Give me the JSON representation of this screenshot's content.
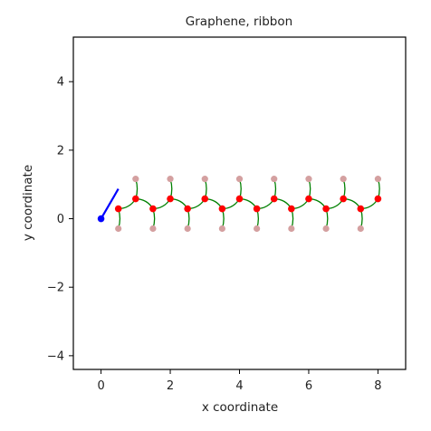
{
  "chart_data": {
    "type": "scatter",
    "title": "Graphene, ribbon",
    "xlabel": "x coordinate",
    "ylabel": "y coordinate",
    "xlim": [
      -0.8,
      8.8
    ],
    "ylim": [
      -4.4,
      5.3
    ],
    "xticks": [
      0,
      2,
      4,
      6,
      8
    ],
    "yticks": [
      -4,
      -2,
      0,
      2,
      4
    ],
    "xtick_labels": [
      "0",
      "2",
      "4",
      "6",
      "8"
    ],
    "ytick_labels": [
      "−4",
      "−2",
      "0",
      "2",
      "4"
    ],
    "grid": false,
    "colors": {
      "main_atoms": "#ff0000",
      "edge_atoms": "#d4a0a0",
      "bonds": "#008000",
      "origin_point": "#0000ff",
      "origin_vector": "#0000ff",
      "frame": "#000000"
    },
    "series": [
      {
        "points": [
          [
            0.5,
            0.29
          ],
          [
            1,
            0.58
          ],
          [
            1.5,
            0.29
          ],
          [
            2,
            0.58
          ],
          [
            2.5,
            0.29
          ],
          [
            3,
            0.58
          ],
          [
            3.5,
            0.29
          ],
          [
            4,
            0.58
          ],
          [
            4.5,
            0.29
          ],
          [
            5,
            0.58
          ],
          [
            5.5,
            0.29
          ],
          [
            6,
            0.58
          ],
          [
            6.5,
            0.29
          ],
          [
            7,
            0.58
          ],
          [
            7.5,
            0.29
          ],
          [
            8,
            0.58
          ]
        ]
      },
      {
        "points": [
          [
            0.5,
            -0.29
          ],
          [
            1,
            1.16
          ],
          [
            1.5,
            -0.29
          ],
          [
            2,
            1.16
          ],
          [
            2.5,
            -0.29
          ],
          [
            3,
            1.16
          ],
          [
            3.5,
            -0.29
          ],
          [
            4,
            1.16
          ],
          [
            4.5,
            -0.29
          ],
          [
            5,
            1.16
          ],
          [
            5.5,
            -0.29
          ],
          [
            6,
            1.16
          ],
          [
            6.5,
            -0.29
          ],
          [
            7,
            1.16
          ],
          [
            7.5,
            -0.29
          ],
          [
            8,
            1.16
          ]
        ]
      },
      {
        "points": [
          [
            0,
            0
          ]
        ]
      }
    ],
    "vector": {
      "from": [
        0,
        0
      ],
      "to": [
        0.5,
        0.87
      ]
    }
  }
}
